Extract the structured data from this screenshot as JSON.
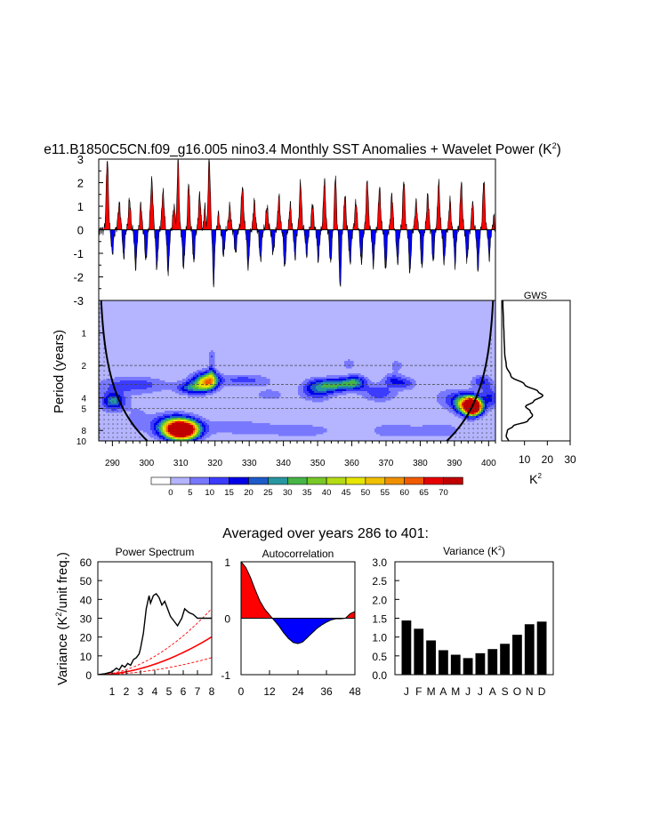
{
  "title": "e11.B1850C5CN.f09_g16.005 nino3.4 Monthly SST Anomalies + Wavelet Power (K",
  "title_sup": "2",
  "title_end": ")",
  "section_title": "Averaged over years 286 to 401:",
  "colors": {
    "positive": "#ff0000",
    "negative": "#0000ff",
    "wave_bg": "#b4b4ff"
  },
  "chart_data": [
    {
      "id": "sst_anomaly",
      "type": "area",
      "xlim": [
        286,
        402
      ],
      "ylim": [
        -3,
        3
      ],
      "yticks": [
        "3",
        "2",
        "1",
        "0",
        "-1",
        "-2",
        "-3"
      ],
      "ytick_values": [
        3,
        2,
        1,
        0,
        -1,
        -2,
        -3
      ],
      "events": [
        [
          288.5,
          3.0,
          0.8
        ],
        [
          290,
          -1.0,
          0.8
        ],
        [
          292,
          1.1,
          0.9
        ],
        [
          293.3,
          -1.2,
          0.7
        ],
        [
          295,
          1.3,
          0.8
        ],
        [
          296.8,
          -1.6,
          0.8
        ],
        [
          298.3,
          1.1,
          0.7
        ],
        [
          299.8,
          -1.3,
          0.8
        ],
        [
          301.5,
          2.1,
          0.9
        ],
        [
          303,
          -1.6,
          0.8
        ],
        [
          304.8,
          1.6,
          0.9
        ],
        [
          306.3,
          -1.8,
          0.8
        ],
        [
          308,
          1.0,
          0.8
        ],
        [
          309.2,
          3.0,
          0.7
        ],
        [
          310.8,
          -1.6,
          0.8
        ],
        [
          312.3,
          2.0,
          0.7
        ],
        [
          313.8,
          -1.4,
          0.7
        ],
        [
          315.5,
          1.5,
          0.8
        ],
        [
          317,
          1.0,
          0.6
        ],
        [
          318.3,
          3.0,
          0.8
        ],
        [
          319.6,
          -2.3,
          0.7
        ],
        [
          321,
          0.7,
          0.6
        ],
        [
          322.5,
          -1.1,
          0.8
        ],
        [
          324.3,
          1.0,
          0.8
        ],
        [
          326,
          -1.0,
          0.8
        ],
        [
          328,
          1.8,
          0.9
        ],
        [
          329.7,
          -1.6,
          0.8
        ],
        [
          331.5,
          1.2,
          0.8
        ],
        [
          333.3,
          -1.3,
          0.8
        ],
        [
          335.2,
          1.0,
          0.8
        ],
        [
          337,
          -1.0,
          0.8
        ],
        [
          338.7,
          1.4,
          0.8
        ],
        [
          340.4,
          -1.6,
          0.8
        ],
        [
          342,
          1.1,
          0.7
        ],
        [
          343.4,
          -1.2,
          0.7
        ],
        [
          345,
          2.0,
          0.8
        ],
        [
          346.8,
          -1.1,
          0.8
        ],
        [
          348.5,
          1.1,
          0.8
        ],
        [
          350.2,
          -1.3,
          0.8
        ],
        [
          352,
          2.1,
          0.8
        ],
        [
          353.8,
          -1.4,
          0.8
        ],
        [
          355.2,
          2.3,
          0.7
        ],
        [
          356.6,
          -2.5,
          0.7
        ],
        [
          358,
          1.5,
          0.7
        ],
        [
          359.5,
          -1.4,
          0.8
        ],
        [
          361.2,
          1.2,
          0.8
        ],
        [
          362.8,
          -1.4,
          0.8
        ],
        [
          364.5,
          2.1,
          0.8
        ],
        [
          366.3,
          -1.5,
          0.8
        ],
        [
          368.1,
          1.8,
          0.8
        ],
        [
          369.9,
          -1.7,
          0.8
        ],
        [
          371.7,
          1.5,
          0.8
        ],
        [
          373.4,
          -1.4,
          0.8
        ],
        [
          375.2,
          2.1,
          0.8
        ],
        [
          377,
          -1.8,
          0.8
        ],
        [
          378.8,
          1.2,
          0.8
        ],
        [
          380.5,
          -1.6,
          0.8
        ],
        [
          382.2,
          1.5,
          0.8
        ],
        [
          383.8,
          -1.4,
          0.7
        ],
        [
          385.4,
          2.0,
          0.8
        ],
        [
          387,
          -1.4,
          0.8
        ],
        [
          388.7,
          1.3,
          0.7
        ],
        [
          390.2,
          -1.5,
          0.7
        ],
        [
          392,
          2.0,
          0.8
        ],
        [
          393.7,
          -1.3,
          0.8
        ],
        [
          395.3,
          1.2,
          0.7
        ],
        [
          396.9,
          -1.7,
          0.8
        ],
        [
          398.6,
          2.1,
          0.8
        ],
        [
          400.2,
          -1.2,
          0.7
        ],
        [
          401.5,
          0.6,
          0.5
        ]
      ]
    },
    {
      "id": "wavelet_power",
      "type": "heatmap",
      "ylabel": "Period (years)",
      "xlim": [
        286,
        402
      ],
      "ylim_period": [
        0.5,
        10
      ],
      "xticks": [
        "290",
        "300",
        "310",
        "320",
        "330",
        "340",
        "350",
        "360",
        "370",
        "380",
        "390",
        "400"
      ],
      "xtick_values": [
        290,
        300,
        310,
        320,
        330,
        340,
        350,
        360,
        370,
        380,
        390,
        400
      ],
      "yticks": [
        "1",
        "2",
        "4",
        "5",
        "8",
        "10"
      ],
      "ytick_values": [
        1,
        2,
        4,
        5,
        8,
        10
      ],
      "dashed_periods": [
        2,
        3,
        4,
        5
      ],
      "levels": [
        0,
        5,
        10,
        15,
        20,
        25,
        30,
        35,
        40,
        45,
        50,
        55,
        60,
        65,
        70
      ],
      "level_labels": [
        "0",
        "5",
        "10",
        "15",
        "20",
        "25",
        "30",
        "35",
        "40",
        "45",
        "50",
        "55",
        "60",
        "65",
        "70"
      ],
      "level_colors": [
        "#ffffff",
        "#b4b4ff",
        "#7878ff",
        "#3c3cff",
        "#0000e6",
        "#1e5ac8",
        "#2896a0",
        "#46b446",
        "#78c828",
        "#b4dc14",
        "#e6e600",
        "#f0c000",
        "#f09000",
        "#f05a00",
        "#e60000",
        "#c00000"
      ],
      "blobs": [
        [
          297,
          2.6,
          4.0,
          0.55,
          6
        ],
        [
          307,
          2.8,
          6.0,
          0.35,
          12
        ],
        [
          309,
          2.9,
          5.5,
          0.3,
          24
        ],
        [
          310,
          3.0,
          5.0,
          0.3,
          40
        ],
        [
          310.5,
          3.0,
          4.0,
          0.25,
          58
        ],
        [
          289,
          2.1,
          3.0,
          0.3,
          12
        ],
        [
          291,
          2.1,
          3.0,
          0.25,
          18
        ],
        [
          315,
          1.5,
          4.0,
          0.35,
          8
        ],
        [
          318,
          1.45,
          3.0,
          0.28,
          14
        ],
        [
          319,
          1.45,
          2.0,
          0.22,
          20
        ],
        [
          313,
          1.7,
          4.0,
          0.18,
          20
        ],
        [
          317,
          1.55,
          3.0,
          0.22,
          30
        ],
        [
          319,
          1.2,
          0.9,
          0.25,
          14
        ],
        [
          319,
          0.7,
          0.9,
          0.22,
          10
        ],
        [
          296,
          1.6,
          10.0,
          0.25,
          14
        ],
        [
          328,
          1.45,
          8.0,
          0.18,
          12
        ],
        [
          336,
          1.9,
          7.0,
          0.3,
          6
        ],
        [
          350,
          1.75,
          4.5,
          0.3,
          20
        ],
        [
          356,
          1.6,
          6.0,
          0.2,
          28
        ],
        [
          361,
          1.5,
          3.0,
          0.2,
          20
        ],
        [
          368,
          1.85,
          5.0,
          0.25,
          14
        ],
        [
          372,
          1.45,
          3.0,
          0.2,
          14
        ],
        [
          376,
          1.55,
          3.0,
          0.18,
          12
        ],
        [
          359,
          0.95,
          2.0,
          0.18,
          8
        ],
        [
          373,
          1.0,
          2.0,
          0.18,
          8
        ],
        [
          326,
          2.9,
          12.0,
          0.25,
          8
        ],
        [
          345,
          3.0,
          10.0,
          0.2,
          9
        ],
        [
          372,
          3.0,
          8.0,
          0.25,
          8
        ],
        [
          386,
          3.0,
          7.0,
          0.25,
          8
        ],
        [
          387,
          2.0,
          4.0,
          0.35,
          6
        ],
        [
          392,
          2.1,
          4.0,
          0.3,
          14
        ],
        [
          394,
          2.2,
          3.5,
          0.28,
          30
        ],
        [
          395,
          2.25,
          2.8,
          0.25,
          58
        ],
        [
          395.5,
          2.3,
          2.0,
          0.2,
          72
        ],
        [
          398,
          1.5,
          3.0,
          0.22,
          14
        ],
        [
          401,
          2.0,
          2.0,
          0.3,
          14
        ],
        [
          399,
          1.9,
          1.5,
          0.35,
          6
        ]
      ]
    },
    {
      "id": "gws",
      "type": "line",
      "title": "GWS",
      "xlabel": "K",
      "xlabel_sup": "2",
      "xlim": [
        0,
        30
      ],
      "xticks": [
        "10",
        "20",
        "30"
      ],
      "xtick_values": [
        10,
        20,
        30
      ],
      "curve": [
        [
          0.5,
          0.5
        ],
        [
          0.8,
          0.8
        ],
        [
          1.0,
          1.0
        ],
        [
          1.5,
          1.3
        ],
        [
          2.0,
          2.0
        ],
        [
          2.5,
          4.0
        ],
        [
          3.0,
          10.0
        ],
        [
          3.5,
          16.0
        ],
        [
          3.8,
          18.0
        ],
        [
          4.3,
          14.0
        ],
        [
          4.8,
          10.5
        ],
        [
          5.3,
          12.5
        ],
        [
          5.8,
          13.5
        ],
        [
          6.5,
          11.5
        ],
        [
          7.3,
          5.0
        ],
        [
          8.0,
          2.5
        ],
        [
          9.0,
          2.0
        ],
        [
          10.0,
          3.0
        ]
      ]
    },
    {
      "id": "power_spectrum",
      "type": "line",
      "title": "Power Spectrum",
      "ylabel": "Variance (K",
      "ylabel_sup": "2",
      "ylabel_end": "/unit freq.)",
      "xlim": [
        0,
        8
      ],
      "ylim": [
        0,
        60
      ],
      "xticks": [
        "1",
        "2",
        "3",
        "4",
        "5",
        "6",
        "7",
        "8"
      ],
      "xtick_values": [
        1,
        2,
        3,
        4,
        5,
        6,
        7,
        8
      ],
      "yticks": [
        "0",
        "10",
        "20",
        "30",
        "40",
        "50",
        "60"
      ],
      "ytick_values": [
        0,
        10,
        20,
        30,
        40,
        50,
        60
      ],
      "spectrum": [
        [
          0.0,
          0.0
        ],
        [
          0.5,
          0.5
        ],
        [
          1.0,
          1.5
        ],
        [
          1.3,
          3.5
        ],
        [
          1.5,
          2.5
        ],
        [
          1.7,
          5.0
        ],
        [
          1.9,
          4.0
        ],
        [
          2.1,
          6.0
        ],
        [
          2.3,
          5.0
        ],
        [
          2.5,
          8.0
        ],
        [
          2.7,
          9.0
        ],
        [
          2.9,
          11.0
        ],
        [
          3.0,
          14.0
        ],
        [
          3.2,
          22.0
        ],
        [
          3.4,
          35.0
        ],
        [
          3.6,
          42.0
        ],
        [
          3.7,
          38.0
        ],
        [
          3.9,
          42.0
        ],
        [
          4.1,
          43.0
        ],
        [
          4.3,
          41.0
        ],
        [
          4.5,
          37.0
        ],
        [
          4.7,
          39.0
        ],
        [
          4.9,
          35.0
        ],
        [
          5.1,
          31.0
        ],
        [
          5.3,
          29.0
        ],
        [
          5.6,
          26.0
        ],
        [
          5.9,
          30.0
        ],
        [
          6.1,
          35.0
        ],
        [
          6.4,
          33.0
        ],
        [
          6.7,
          32.0
        ],
        [
          7.0,
          30.0
        ],
        [
          7.3,
          30.0
        ],
        [
          7.7,
          30.0
        ],
        [
          8.0,
          30.0
        ]
      ],
      "red_noise": {
        "k": 4.5,
        "p": 1.85,
        "upper_factor": 1.75,
        "lower_factor": 0.45
      }
    },
    {
      "id": "autocorrelation",
      "type": "area",
      "title": "Autocorrelation",
      "xlim": [
        0,
        48
      ],
      "ylim": [
        -1,
        1
      ],
      "xticks": [
        "0",
        "12",
        "24",
        "36",
        "48"
      ],
      "xtick_values": [
        0,
        12,
        24,
        36,
        48
      ],
      "yticks": [
        "1",
        "0",
        "-1"
      ],
      "ytick_values": [
        1,
        0,
        -1
      ],
      "acf": [
        [
          0,
          1.0
        ],
        [
          2,
          0.9
        ],
        [
          4,
          0.72
        ],
        [
          6,
          0.5
        ],
        [
          8,
          0.3
        ],
        [
          10,
          0.16
        ],
        [
          12,
          0.06
        ],
        [
          14,
          -0.04
        ],
        [
          16,
          -0.14
        ],
        [
          18,
          -0.26
        ],
        [
          20,
          -0.36
        ],
        [
          22,
          -0.43
        ],
        [
          24,
          -0.45
        ],
        [
          26,
          -0.42
        ],
        [
          28,
          -0.34
        ],
        [
          30,
          -0.26
        ],
        [
          32,
          -0.18
        ],
        [
          34,
          -0.12
        ],
        [
          36,
          -0.07
        ],
        [
          38,
          -0.03
        ],
        [
          40,
          -0.01
        ],
        [
          42,
          -0.01
        ],
        [
          44,
          0.0
        ],
        [
          46,
          0.08
        ],
        [
          48,
          0.12
        ]
      ]
    },
    {
      "id": "monthly_variance",
      "type": "bar",
      "title": "Variance (K",
      "title_sup": "2",
      "title_end": ")",
      "categories": [
        "J",
        "F",
        "M",
        "A",
        "M",
        "J",
        "J",
        "A",
        "S",
        "O",
        "N",
        "D"
      ],
      "values": [
        1.44,
        1.22,
        0.91,
        0.65,
        0.53,
        0.44,
        0.57,
        0.68,
        0.82,
        1.06,
        1.34,
        1.41
      ],
      "ylim": [
        0,
        3
      ],
      "yticks": [
        "3.0",
        "2.5",
        "2.0",
        "1.5",
        "1.0",
        "0.5",
        "0.0"
      ],
      "ytick_values": [
        3.0,
        2.5,
        2.0,
        1.5,
        1.0,
        0.5,
        0.0
      ]
    }
  ]
}
